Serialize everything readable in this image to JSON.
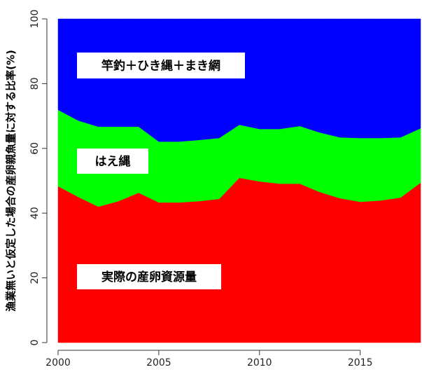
{
  "chart_data": {
    "type": "stacked-area",
    "y_label": "漁業無いと仮定した場合の産卵親魚量に対する比率(%)",
    "x": [
      2000,
      2001,
      2002,
      2003,
      2004,
      2005,
      2006,
      2007,
      2008,
      2009,
      2010,
      2011,
      2012,
      2013,
      2014,
      2015,
      2016,
      2017,
      2018
    ],
    "series": [
      {
        "name": "実際の産卵資源量",
        "color": "#ff0000",
        "values": [
          48.3,
          45,
          42,
          43.7,
          46.3,
          43.3,
          43.3,
          43.7,
          44.4,
          50.9,
          49.8,
          49.1,
          49.1,
          46.5,
          44.6,
          43.5,
          43.9,
          44.8,
          49.4
        ]
      },
      {
        "name": "はえ縄",
        "color": "#00ff00",
        "values": [
          23.6,
          23.6,
          24.7,
          23.0,
          20.4,
          18.8,
          18.8,
          18.9,
          18.8,
          16.4,
          16.2,
          16.9,
          17.8,
          18.4,
          18.8,
          19.7,
          19.3,
          18.6,
          16.8
        ]
      },
      {
        "name": "竿釣＋ひき縄＋まき網",
        "color": "#0000ff",
        "values": [
          28.1,
          31.4,
          33.3,
          33.3,
          33.3,
          37.9,
          37.9,
          37.4,
          36.8,
          32.7,
          34,
          34,
          33.1,
          35.1,
          36.6,
          36.8,
          36.8,
          36.6,
          33.8
        ]
      }
    ],
    "xlim": [
      2000,
      2018
    ],
    "xticks": [
      2000,
      2005,
      2010,
      2015
    ],
    "ylim": [
      0,
      100
    ],
    "yticks": [
      0,
      20,
      40,
      60,
      80,
      100
    ]
  }
}
